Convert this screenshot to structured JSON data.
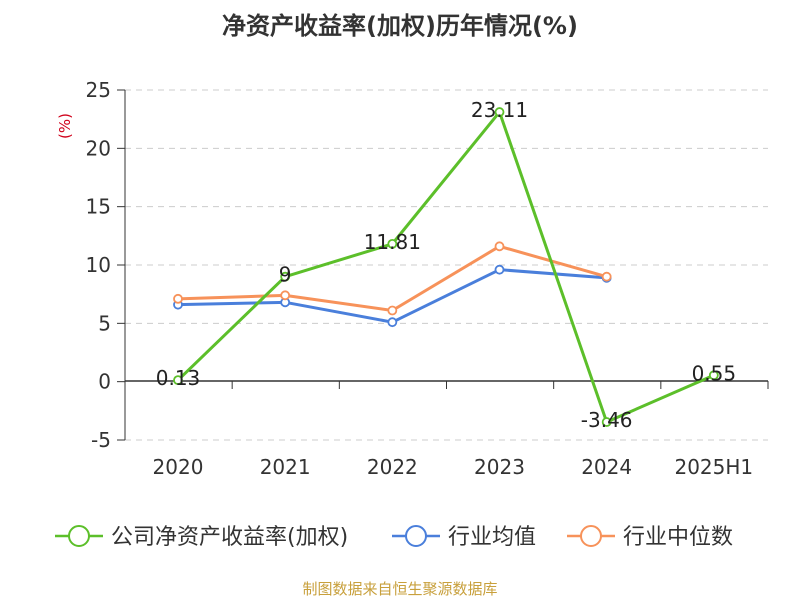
{
  "title": "净资产收益率(加权)历年情况(%)",
  "source": "制图数据来自恒生聚源数据库",
  "source_color": "#c8a03c",
  "chart_data": {
    "type": "line",
    "title": "净资产收益率(加权)历年情况(%)",
    "ylabel": "(%)",
    "ylabel_color": "#d0021b",
    "ylim": [
      -5,
      25
    ],
    "yticks": [
      "25",
      "20",
      "15",
      "10",
      "5",
      "0",
      "-5"
    ],
    "categories": [
      "2020",
      "2021",
      "2022",
      "2023",
      "2024",
      "2025H1"
    ],
    "grid": true,
    "legend_position": "bottom",
    "series": [
      {
        "name": "公司净资产收益率(加权)",
        "color": "#5cbf2a",
        "values": [
          0.13,
          9,
          11.81,
          23.11,
          -3.46,
          0.55
        ],
        "labels": [
          "0.13",
          "9",
          "11.81",
          "23.11",
          "-3.46",
          "0.55"
        ]
      },
      {
        "name": "行业均值",
        "color": "#4a7fdb",
        "values": [
          6.6,
          6.8,
          5.1,
          9.6,
          8.9,
          null
        ]
      },
      {
        "name": "行业中位数",
        "color": "#f7925a",
        "values": [
          7.1,
          7.4,
          6.1,
          11.6,
          9.0,
          null
        ]
      }
    ]
  }
}
